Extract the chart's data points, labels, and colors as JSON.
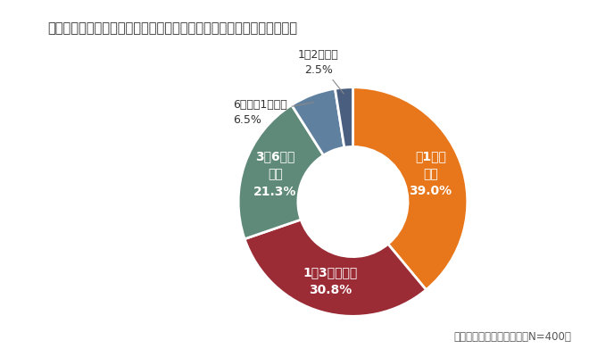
{
  "title": "転職活動を始めてから内定が出るまでの期間は、どのくらいでしたか？",
  "values": [
    39.0,
    30.8,
    21.3,
    6.5,
    2.5
  ],
  "colors": [
    "#E8761A",
    "#9B2B35",
    "#5F8A7A",
    "#6080A0",
    "#4A5F80"
  ],
  "inner_labels": [
    "〜1ヶ月\n未満\n39.0%",
    "1〜3ヶ月未満\n30.8%",
    "3〜6ヶ月\n未満\n21.3%"
  ],
  "outer_label_6mo": "6ヶ月〜1年未満\n6.5%",
  "outer_label_2yr": "1〜2年未満\n2.5%",
  "footnote": "マンパワーグループ調べ（N=400）",
  "title_fontsize": 10.5,
  "inner_label_fontsize": 10,
  "outer_label_fontsize": 9,
  "footnote_fontsize": 8.5,
  "donut_width": 0.52,
  "bg_color": "#ffffff"
}
